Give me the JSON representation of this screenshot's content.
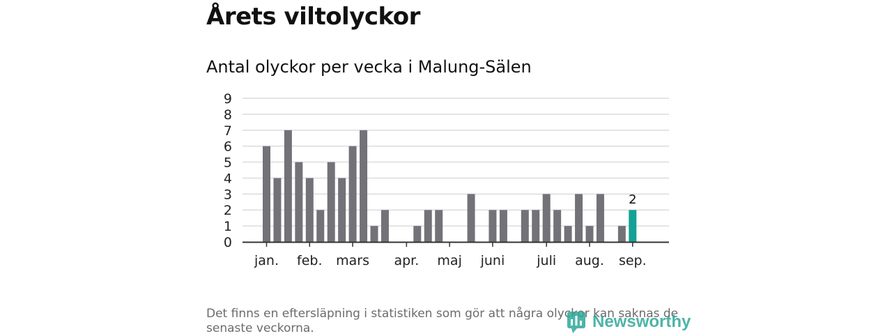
{
  "title": "Årets viltolyckor",
  "subtitle": "Antal olyckor per vecka i Malung-Sälen",
  "note": "Det finns en eftersläpning i statistiken som gör att några olyckor kan saknas de senaste veckorna.",
  "brand": {
    "name": "Newsworthy",
    "color": "#2fa79a",
    "icon": "bar-chart-logo-icon"
  },
  "chart_data": {
    "type": "bar",
    "title": "Antal olyckor per vecka i Malung-Sälen",
    "xlabel": "",
    "ylabel": "",
    "ylim": [
      0,
      9
    ],
    "yticks": [
      "0",
      "1",
      "2",
      "3",
      "4",
      "5",
      "6",
      "7",
      "8",
      "9"
    ],
    "grid": true,
    "legend": "none",
    "month_labels": [
      "jan.",
      "feb.",
      "mars",
      "apr.",
      "maj",
      "juni",
      "juli",
      "aug.",
      "sep."
    ],
    "month_label_week_index": [
      0,
      4,
      8,
      13,
      17,
      21,
      26,
      30,
      34
    ],
    "values": [
      6,
      4,
      7,
      5,
      4,
      2,
      5,
      4,
      6,
      7,
      1,
      2,
      0,
      0,
      1,
      2,
      2,
      0,
      0,
      3,
      0,
      2,
      2,
      0,
      2,
      2,
      3,
      2,
      1,
      3,
      1,
      3,
      0,
      1,
      2
    ],
    "highlight_index": 34,
    "highlight_label": "2",
    "colors": {
      "bar": "#737278",
      "highlight": "#14a196",
      "grid": "#dcdcdc",
      "axis": "#333333"
    }
  }
}
